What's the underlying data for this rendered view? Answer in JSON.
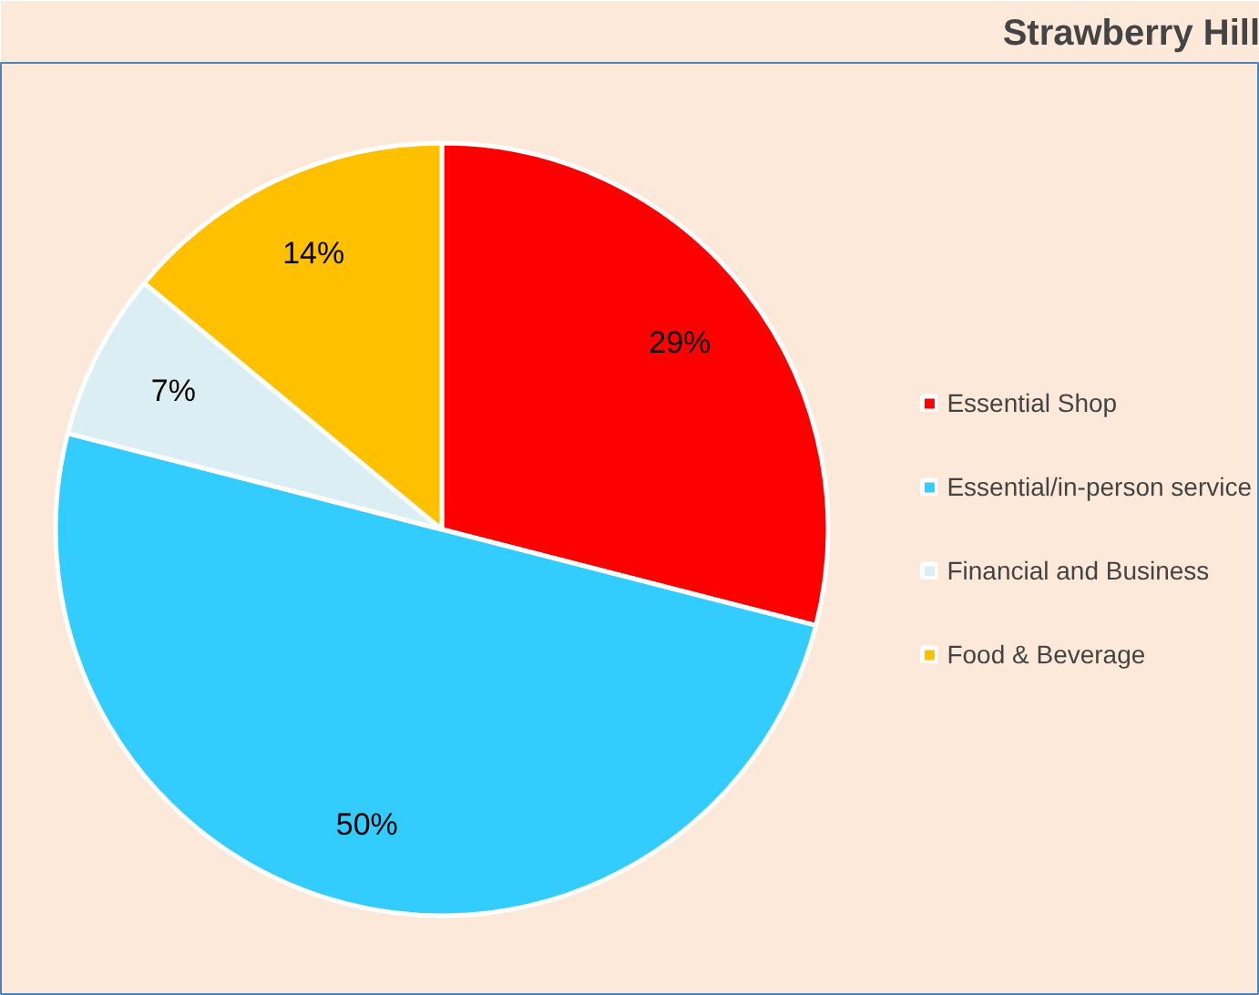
{
  "chart_data": {
    "type": "pie",
    "title": "Strawberry Hill",
    "categories": [
      "Essential Shop",
      "Essential/in-person service",
      "Financial and Business",
      "Food & Beverage"
    ],
    "values": [
      29,
      50,
      7,
      14
    ],
    "colors": [
      "#ff0000",
      "#33ccff",
      "#daeef3",
      "#ffc000"
    ],
    "value_labels": [
      "29%",
      "50%",
      "7%",
      "14%"
    ],
    "legend": "right"
  }
}
